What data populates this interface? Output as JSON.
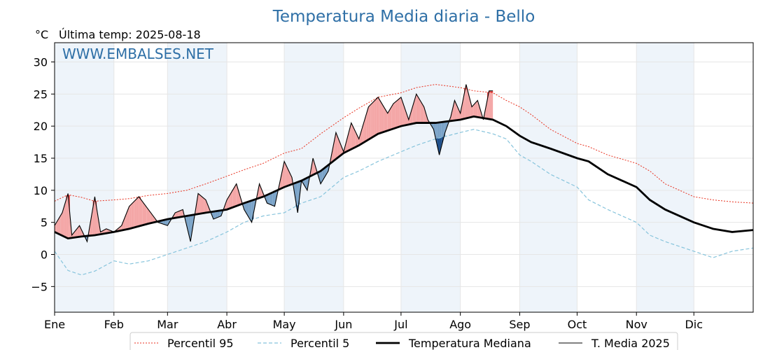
{
  "chart_data": {
    "type": "line",
    "title": "Temperatura Media diaria - Bello",
    "unit_label": "°C",
    "last_temp_label": "Última temp: 2025-08-18",
    "watermark": "WWW.EMBALSES.NET",
    "ylim": [
      -9,
      33
    ],
    "y_ticks": [
      -5,
      0,
      5,
      10,
      15,
      20,
      25,
      30
    ],
    "xlim": [
      1,
      366
    ],
    "grid": true,
    "legend_position": "bottom-center",
    "month_labels": [
      "Ene",
      "Feb",
      "Mar",
      "Abr",
      "May",
      "Jun",
      "Jul",
      "Ago",
      "Sep",
      "Oct",
      "Nov",
      "Dic"
    ],
    "month_start_days": [
      1,
      32,
      60,
      91,
      121,
      152,
      182,
      213,
      244,
      274,
      305,
      335
    ],
    "shaded_months": [
      "Ene",
      "Mar",
      "May",
      "Jul",
      "Sep",
      "Nov"
    ],
    "colors": {
      "p95": "#e8311f",
      "p5": "#87c4dc",
      "median": "#000000",
      "year": "#000000",
      "above_fill": "#f4a6a6",
      "above_p95_fill": "#e84b4b",
      "below_fill": "#7aa3c8",
      "below_p5_fill": "#1f4f8a",
      "month_band": "#eef4fa",
      "title": "#2e6fa6"
    },
    "series": [
      {
        "name": "Percentil 95",
        "style": "dotted",
        "days": [
          1,
          8,
          15,
          22,
          32,
          40,
          50,
          60,
          70,
          80,
          91,
          100,
          110,
          121,
          130,
          140,
          152,
          160,
          170,
          182,
          190,
          200,
          213,
          220,
          230,
          237,
          244,
          250,
          260,
          274,
          280,
          290,
          305,
          312,
          320,
          335,
          345,
          355,
          366
        ],
        "values": [
          8.3,
          9.3,
          8.9,
          8.3,
          8.5,
          8.7,
          9.2,
          9.5,
          10.0,
          11.0,
          12.2,
          13.2,
          14.2,
          15.8,
          16.5,
          18.8,
          21.3,
          22.8,
          24.5,
          25.2,
          26.0,
          26.5,
          26.0,
          25.5,
          25.2,
          24.0,
          23.0,
          21.8,
          19.5,
          17.3,
          16.8,
          15.5,
          14.2,
          13.0,
          11.0,
          9.0,
          8.5,
          8.2,
          8.0
        ]
      },
      {
        "name": "Percentil 5",
        "style": "dashed",
        "days": [
          1,
          8,
          15,
          22,
          32,
          40,
          50,
          60,
          70,
          80,
          91,
          100,
          110,
          121,
          130,
          140,
          152,
          160,
          170,
          182,
          190,
          200,
          213,
          220,
          230,
          237,
          244,
          250,
          260,
          274,
          280,
          290,
          305,
          312,
          320,
          335,
          345,
          355,
          366
        ],
        "values": [
          0.5,
          -2.5,
          -3.2,
          -2.6,
          -1.0,
          -1.5,
          -1.0,
          0.0,
          1.0,
          2.0,
          3.5,
          5.0,
          6.0,
          6.5,
          8.0,
          9.0,
          12.0,
          13.0,
          14.5,
          16.0,
          17.0,
          18.0,
          19.0,
          19.5,
          18.8,
          18.0,
          15.5,
          14.5,
          12.5,
          10.5,
          8.5,
          7.0,
          5.0,
          3.0,
          2.0,
          0.5,
          -0.5,
          0.5,
          1.0
        ]
      },
      {
        "name": "Temperatura Mediana",
        "style": "solid-thick",
        "days": [
          1,
          8,
          15,
          22,
          32,
          40,
          50,
          60,
          70,
          80,
          91,
          100,
          110,
          121,
          130,
          140,
          152,
          160,
          170,
          182,
          190,
          200,
          213,
          220,
          230,
          237,
          244,
          250,
          260,
          274,
          280,
          290,
          305,
          312,
          320,
          335,
          345,
          355,
          366
        ],
        "values": [
          3.5,
          2.5,
          2.8,
          3.0,
          3.5,
          4.0,
          4.8,
          5.5,
          6.0,
          6.5,
          7.0,
          8.0,
          9.0,
          10.5,
          11.5,
          13.0,
          15.8,
          17.0,
          18.8,
          20.0,
          20.5,
          20.5,
          21.0,
          21.5,
          21.0,
          20.0,
          18.5,
          17.5,
          16.5,
          15.0,
          14.5,
          12.5,
          10.5,
          8.5,
          7.0,
          5.0,
          4.0,
          3.5,
          3.8
        ]
      },
      {
        "name": "T. Media 2025",
        "style": "solid-thin",
        "days": [
          1,
          5,
          8,
          10,
          14,
          18,
          22,
          25,
          28,
          32,
          36,
          40,
          45,
          50,
          55,
          60,
          64,
          68,
          72,
          76,
          80,
          84,
          88,
          91,
          96,
          100,
          104,
          108,
          112,
          116,
          121,
          125,
          128,
          130,
          133,
          136,
          140,
          144,
          148,
          152,
          156,
          160,
          165,
          170,
          175,
          178,
          182,
          186,
          190,
          194,
          196,
          199,
          202,
          205,
          208,
          210,
          213,
          216,
          219,
          222,
          225,
          228,
          230
        ],
        "values": [
          4.5,
          6.5,
          9.5,
          3.0,
          4.5,
          2.0,
          9.0,
          3.5,
          4.0,
          3.5,
          4.5,
          7.5,
          9.0,
          7.0,
          5.0,
          4.5,
          6.5,
          7.0,
          2.0,
          9.5,
          8.5,
          5.5,
          6.0,
          8.5,
          11.0,
          7.0,
          5.0,
          11.0,
          8.0,
          7.5,
          14.5,
          12.0,
          6.5,
          11.5,
          10.0,
          15.0,
          11.0,
          13.0,
          19.0,
          16.0,
          20.5,
          18.0,
          23.0,
          24.5,
          22.0,
          23.5,
          24.5,
          21.0,
          25.0,
          23.0,
          21.0,
          19.5,
          15.5,
          19.0,
          21.5,
          24.0,
          22.0,
          26.5,
          23.0,
          24.0,
          21.0,
          25.5,
          25.5
        ]
      }
    ]
  }
}
